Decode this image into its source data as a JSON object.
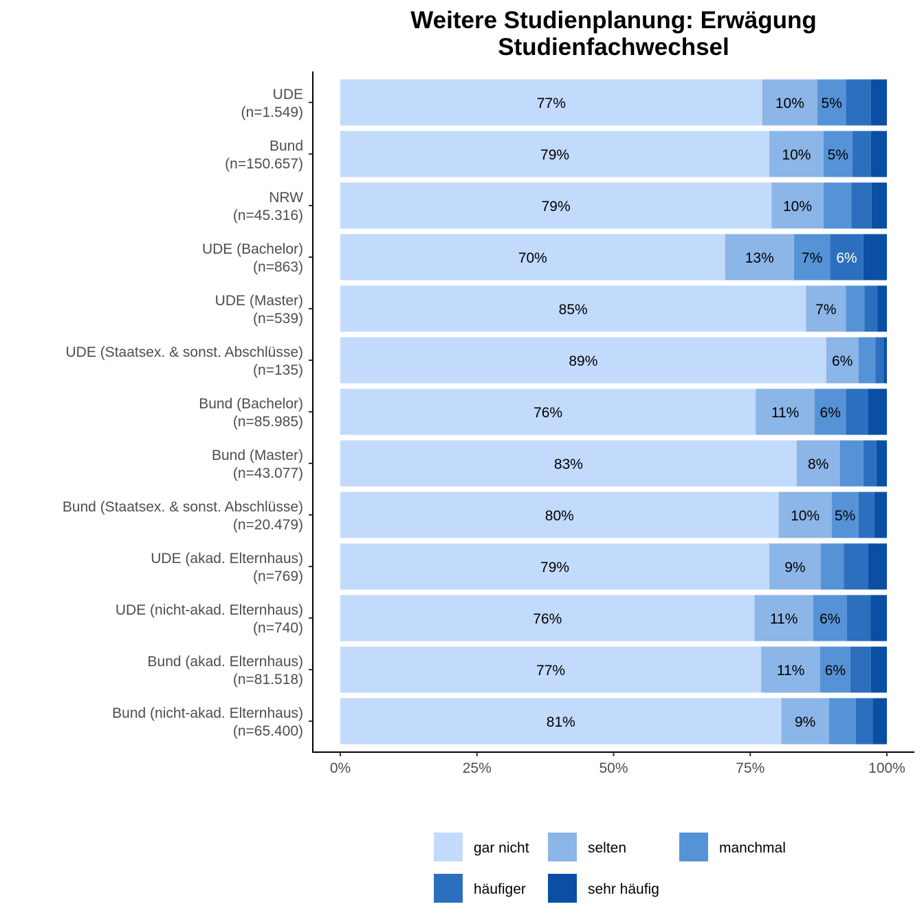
{
  "chart_data": {
    "type": "bar",
    "orientation": "horizontal",
    "stacked": true,
    "title_lines": [
      "Weitere Studienplanung: Erwägung",
      "Studienfachwechsel"
    ],
    "xlabel": "",
    "ylabel": "",
    "xlim": [
      0,
      100
    ],
    "x_ticks": [
      "0%",
      "25%",
      "50%",
      "75%",
      "100%"
    ],
    "grid": false,
    "legend_position": "bottom",
    "categories": [
      [
        "UDE",
        "(n=1.549)"
      ],
      [
        "Bund",
        "(n=150.657)"
      ],
      [
        "NRW",
        "(n=45.316)"
      ],
      [
        "UDE (Bachelor)",
        "(n=863)"
      ],
      [
        "UDE (Master)",
        "(n=539)"
      ],
      [
        "UDE (Staatsex. & sonst. Abschlüsse)",
        "(n=135)"
      ],
      [
        "Bund (Bachelor)",
        "(n=85.985)"
      ],
      [
        "Bund (Master)",
        "(n=43.077)"
      ],
      [
        "Bund (Staatsex. & sonst. Abschlüsse)",
        "(n=20.479)"
      ],
      [
        "UDE (akad. Elternhaus)",
        "(n=769)"
      ],
      [
        "UDE (nicht-akad. Elternhaus)",
        "(n=740)"
      ],
      [
        "Bund (akad. Elternhaus)",
        "(n=81.518)"
      ],
      [
        "Bund (nicht-akad. Elternhaus)",
        "(n=65.400)"
      ]
    ],
    "series": [
      {
        "name": "gar nicht",
        "color": "#C2DAFC",
        "label_color": "#000000",
        "values": [
          77.2,
          78.5,
          78.9,
          70.4,
          85.2,
          88.9,
          76.0,
          83.5,
          80.2,
          78.5,
          75.8,
          77.0,
          80.7
        ],
        "labels": [
          "77%",
          "79%",
          "79%",
          "70%",
          "85%",
          "89%",
          "76%",
          "83%",
          "80%",
          "79%",
          "76%",
          "77%",
          "81%"
        ]
      },
      {
        "name": "selten",
        "color": "#8CB5E8",
        "label_color": "#000000",
        "values": [
          10.1,
          9.9,
          9.5,
          12.6,
          7.3,
          5.9,
          10.8,
          7.9,
          9.7,
          9.4,
          10.7,
          10.8,
          8.7
        ],
        "labels": [
          "10%",
          "10%",
          "10%",
          "13%",
          "7%",
          "6%",
          "11%",
          "8%",
          "10%",
          "9%",
          "11%",
          "11%",
          "9%"
        ]
      },
      {
        "name": "manchmal",
        "color": "#5693D6",
        "label_color": "#000000",
        "values": [
          5.2,
          5.3,
          5.1,
          6.6,
          3.4,
          3.1,
          5.7,
          4.3,
          4.9,
          4.2,
          6.2,
          5.5,
          4.9
        ],
        "labels": [
          "5%",
          "5%",
          "",
          "7%",
          "",
          "",
          "6%",
          "",
          "5%",
          "",
          "6%",
          "6%",
          ""
        ]
      },
      {
        "name": "häufiger",
        "color": "#2D6FBF",
        "label_color": "#ffffff",
        "values": [
          4.6,
          3.4,
          3.7,
          6.1,
          2.4,
          1.5,
          4.0,
          2.4,
          2.9,
          4.5,
          4.3,
          3.8,
          3.1
        ],
        "labels": [
          "",
          "",
          "",
          "6%",
          "",
          "",
          "",
          "",
          "",
          "",
          "",
          "",
          ""
        ]
      },
      {
        "name": "sehr häufig",
        "color": "#0A4FA3",
        "label_color": "#ffffff",
        "values": [
          2.9,
          2.9,
          2.8,
          4.3,
          1.7,
          0.6,
          3.5,
          1.9,
          2.3,
          3.4,
          3.0,
          2.9,
          2.6
        ],
        "labels": [
          "",
          "",
          "",
          "",
          "",
          "",
          "",
          "",
          "",
          "",
          "",
          "",
          ""
        ]
      }
    ]
  }
}
